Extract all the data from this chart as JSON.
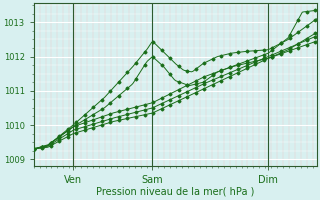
{
  "xlabel": "Pression niveau de la mer( hPa )",
  "bg_color": "#d8f0f0",
  "line_color": "#1a6e1a",
  "tick_label_color": "#1a6e1a",
  "ylim": [
    1008.8,
    1013.55
  ],
  "yticks": [
    1009,
    1010,
    1011,
    1012,
    1013
  ],
  "day_labels": [
    "Ven",
    "Sam",
    "Dim"
  ],
  "day_positions": [
    0.14,
    0.42,
    0.83
  ],
  "n": 200
}
